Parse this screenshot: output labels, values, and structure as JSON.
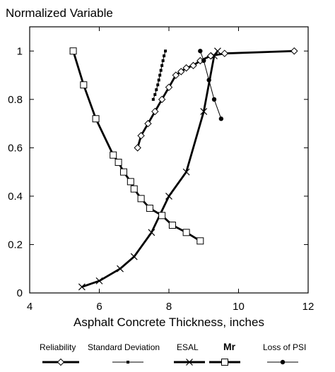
{
  "chart_data": {
    "type": "line",
    "title": "",
    "ylabel": "Normalized Variable",
    "xlabel": "Asphalt Concrete Thickness, inches",
    "xlim": [
      4,
      12
    ],
    "ylim": [
      0,
      1.1
    ],
    "x_ticks": [
      4,
      6,
      8,
      10,
      12
    ],
    "x_tick_labels": [
      "4",
      "6",
      "8",
      "10",
      "12"
    ],
    "y_ticks": [
      0,
      0.2,
      0.4,
      0.6,
      0.8,
      1
    ],
    "y_tick_labels": [
      "0",
      "0.2",
      "0.4",
      "0.6",
      "0.8",
      "1"
    ],
    "grid": false,
    "legend_position": "bottom",
    "series": [
      {
        "name": "Reliability",
        "marker": "diamond",
        "line_weight": "thick",
        "x": [
          7.1,
          7.2,
          7.4,
          7.6,
          7.8,
          8.0,
          8.2,
          8.35,
          8.5,
          8.7,
          8.9,
          9.2,
          9.6,
          11.6
        ],
        "y": [
          0.6,
          0.65,
          0.7,
          0.75,
          0.8,
          0.85,
          0.9,
          0.915,
          0.93,
          0.94,
          0.96,
          0.98,
          0.99,
          1.0
        ]
      },
      {
        "name": "Standard Deviation",
        "marker": "dot",
        "line_weight": "thin",
        "x": [
          7.55,
          7.6,
          7.64,
          7.68,
          7.71,
          7.74,
          7.77,
          7.8,
          7.83,
          7.86,
          7.9
        ],
        "y": [
          0.8,
          0.82,
          0.84,
          0.86,
          0.88,
          0.9,
          0.92,
          0.94,
          0.96,
          0.98,
          1.0
        ]
      },
      {
        "name": "ESAL",
        "marker": "x",
        "line_weight": "thick",
        "x": [
          5.5,
          6.0,
          6.6,
          7.0,
          7.5,
          8.0,
          8.5,
          9.0,
          9.3,
          9.4
        ],
        "y": [
          0.025,
          0.05,
          0.1,
          0.15,
          0.25,
          0.4,
          0.5,
          0.75,
          0.98,
          1.0
        ]
      },
      {
        "name": "Mr",
        "marker": "square",
        "line_weight": "thick",
        "x": [
          5.25,
          5.55,
          5.9,
          6.4,
          6.55,
          6.7,
          6.9,
          7.0,
          7.2,
          7.45,
          7.8,
          8.1,
          8.5,
          8.9
        ],
        "y": [
          1.0,
          0.86,
          0.72,
          0.57,
          0.54,
          0.5,
          0.46,
          0.43,
          0.39,
          0.35,
          0.32,
          0.28,
          0.25,
          0.215
        ]
      },
      {
        "name": "Loss of PSI",
        "marker": "filled-circle",
        "line_weight": "thin",
        "x": [
          8.9,
          9.0,
          9.15,
          9.3,
          9.5
        ],
        "y": [
          1.0,
          0.96,
          0.88,
          0.8,
          0.72
        ]
      }
    ]
  }
}
